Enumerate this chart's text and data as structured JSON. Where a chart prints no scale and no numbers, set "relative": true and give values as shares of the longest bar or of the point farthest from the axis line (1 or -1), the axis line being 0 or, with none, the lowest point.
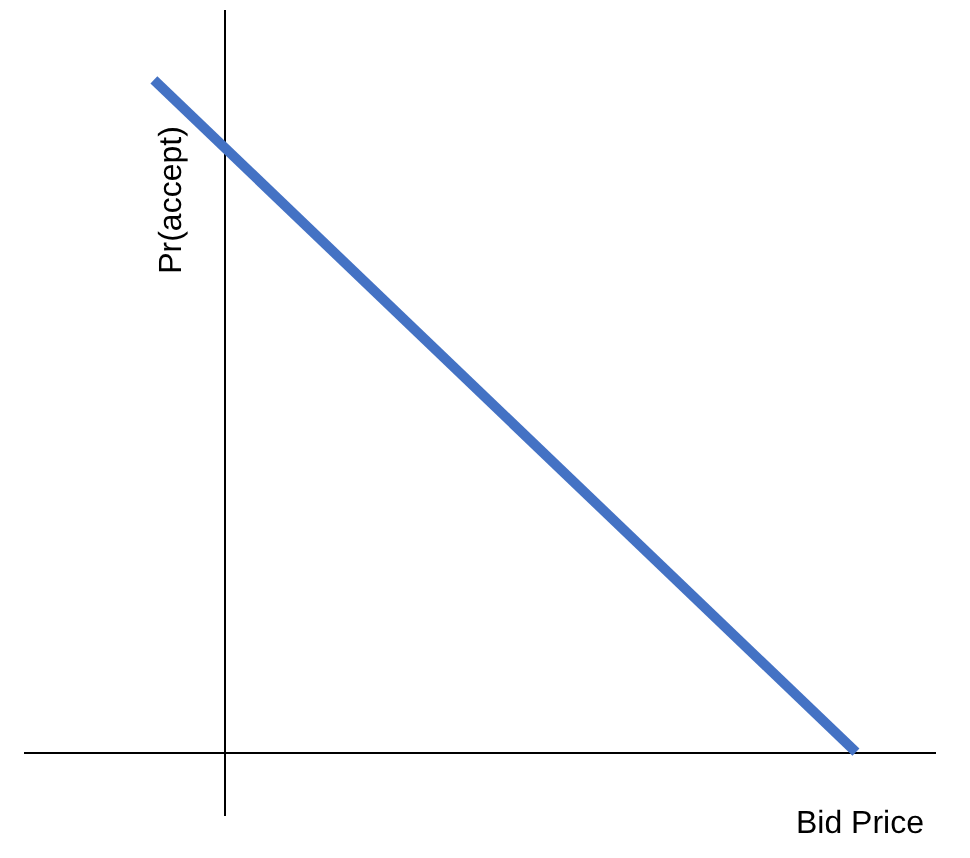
{
  "chart_data": {
    "type": "line",
    "xlabel": "Bid Price",
    "ylabel": "Pr(accept)",
    "categories": [
      null,
      null
    ],
    "values": [
      1,
      0
    ],
    "color": "#4472c4",
    "relative": true
  }
}
